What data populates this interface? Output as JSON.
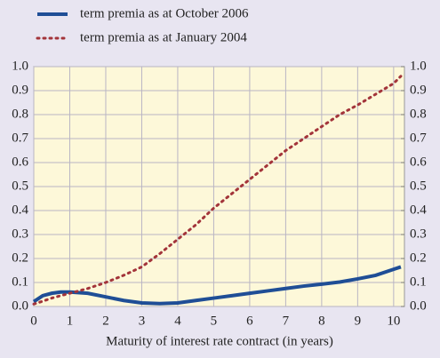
{
  "chart_data": {
    "type": "line",
    "x_label": "Maturity of interest rate contract (in years)",
    "x": [
      0,
      0.25,
      0.5,
      0.75,
      1,
      1.5,
      2,
      2.5,
      3,
      3.5,
      4,
      4.5,
      5,
      5.5,
      6,
      6.5,
      7,
      7.5,
      8,
      8.5,
      9,
      9.5,
      10,
      10.2
    ],
    "series": [
      {
        "name": "term premia as at October 2006",
        "color": "#1f4e96",
        "style": "solid",
        "values": [
          0.02,
          0.045,
          0.055,
          0.06,
          0.06,
          0.055,
          0.04,
          0.025,
          0.015,
          0.012,
          0.015,
          0.025,
          0.035,
          0.045,
          0.055,
          0.065,
          0.075,
          0.085,
          0.093,
          0.102,
          0.115,
          0.13,
          0.155,
          0.165
        ]
      },
      {
        "name": "term premia as at January 2004",
        "color": "#a3343a",
        "style": "dotted",
        "values": [
          0.01,
          0.022,
          0.035,
          0.045,
          0.055,
          0.075,
          0.1,
          0.13,
          0.165,
          0.22,
          0.28,
          0.34,
          0.41,
          0.47,
          0.53,
          0.59,
          0.65,
          0.7,
          0.75,
          0.8,
          0.84,
          0.885,
          0.93,
          0.96
        ]
      }
    ],
    "xlim": [
      0,
      10.3
    ],
    "xticks": [
      0,
      1,
      2,
      3,
      4,
      5,
      6,
      7,
      8,
      9,
      10
    ],
    "ylim": [
      0,
      1
    ],
    "yticks": [
      {
        "value": 0,
        "label": "0.0"
      },
      0.1,
      0.2,
      0.3,
      0.4,
      0.5,
      0.6,
      0.7,
      0.8,
      0.9,
      {
        "value": 1,
        "label": "1.0"
      }
    ],
    "y2lim": [
      0,
      1
    ],
    "y2ticks": [
      {
        "value": 0,
        "label": "0.0"
      },
      0.1,
      0.2,
      0.3,
      0.4,
      0.5,
      0.6,
      0.7,
      0.8,
      0.9,
      {
        "value": 1,
        "label": "1.0"
      }
    ],
    "grid": true
  }
}
